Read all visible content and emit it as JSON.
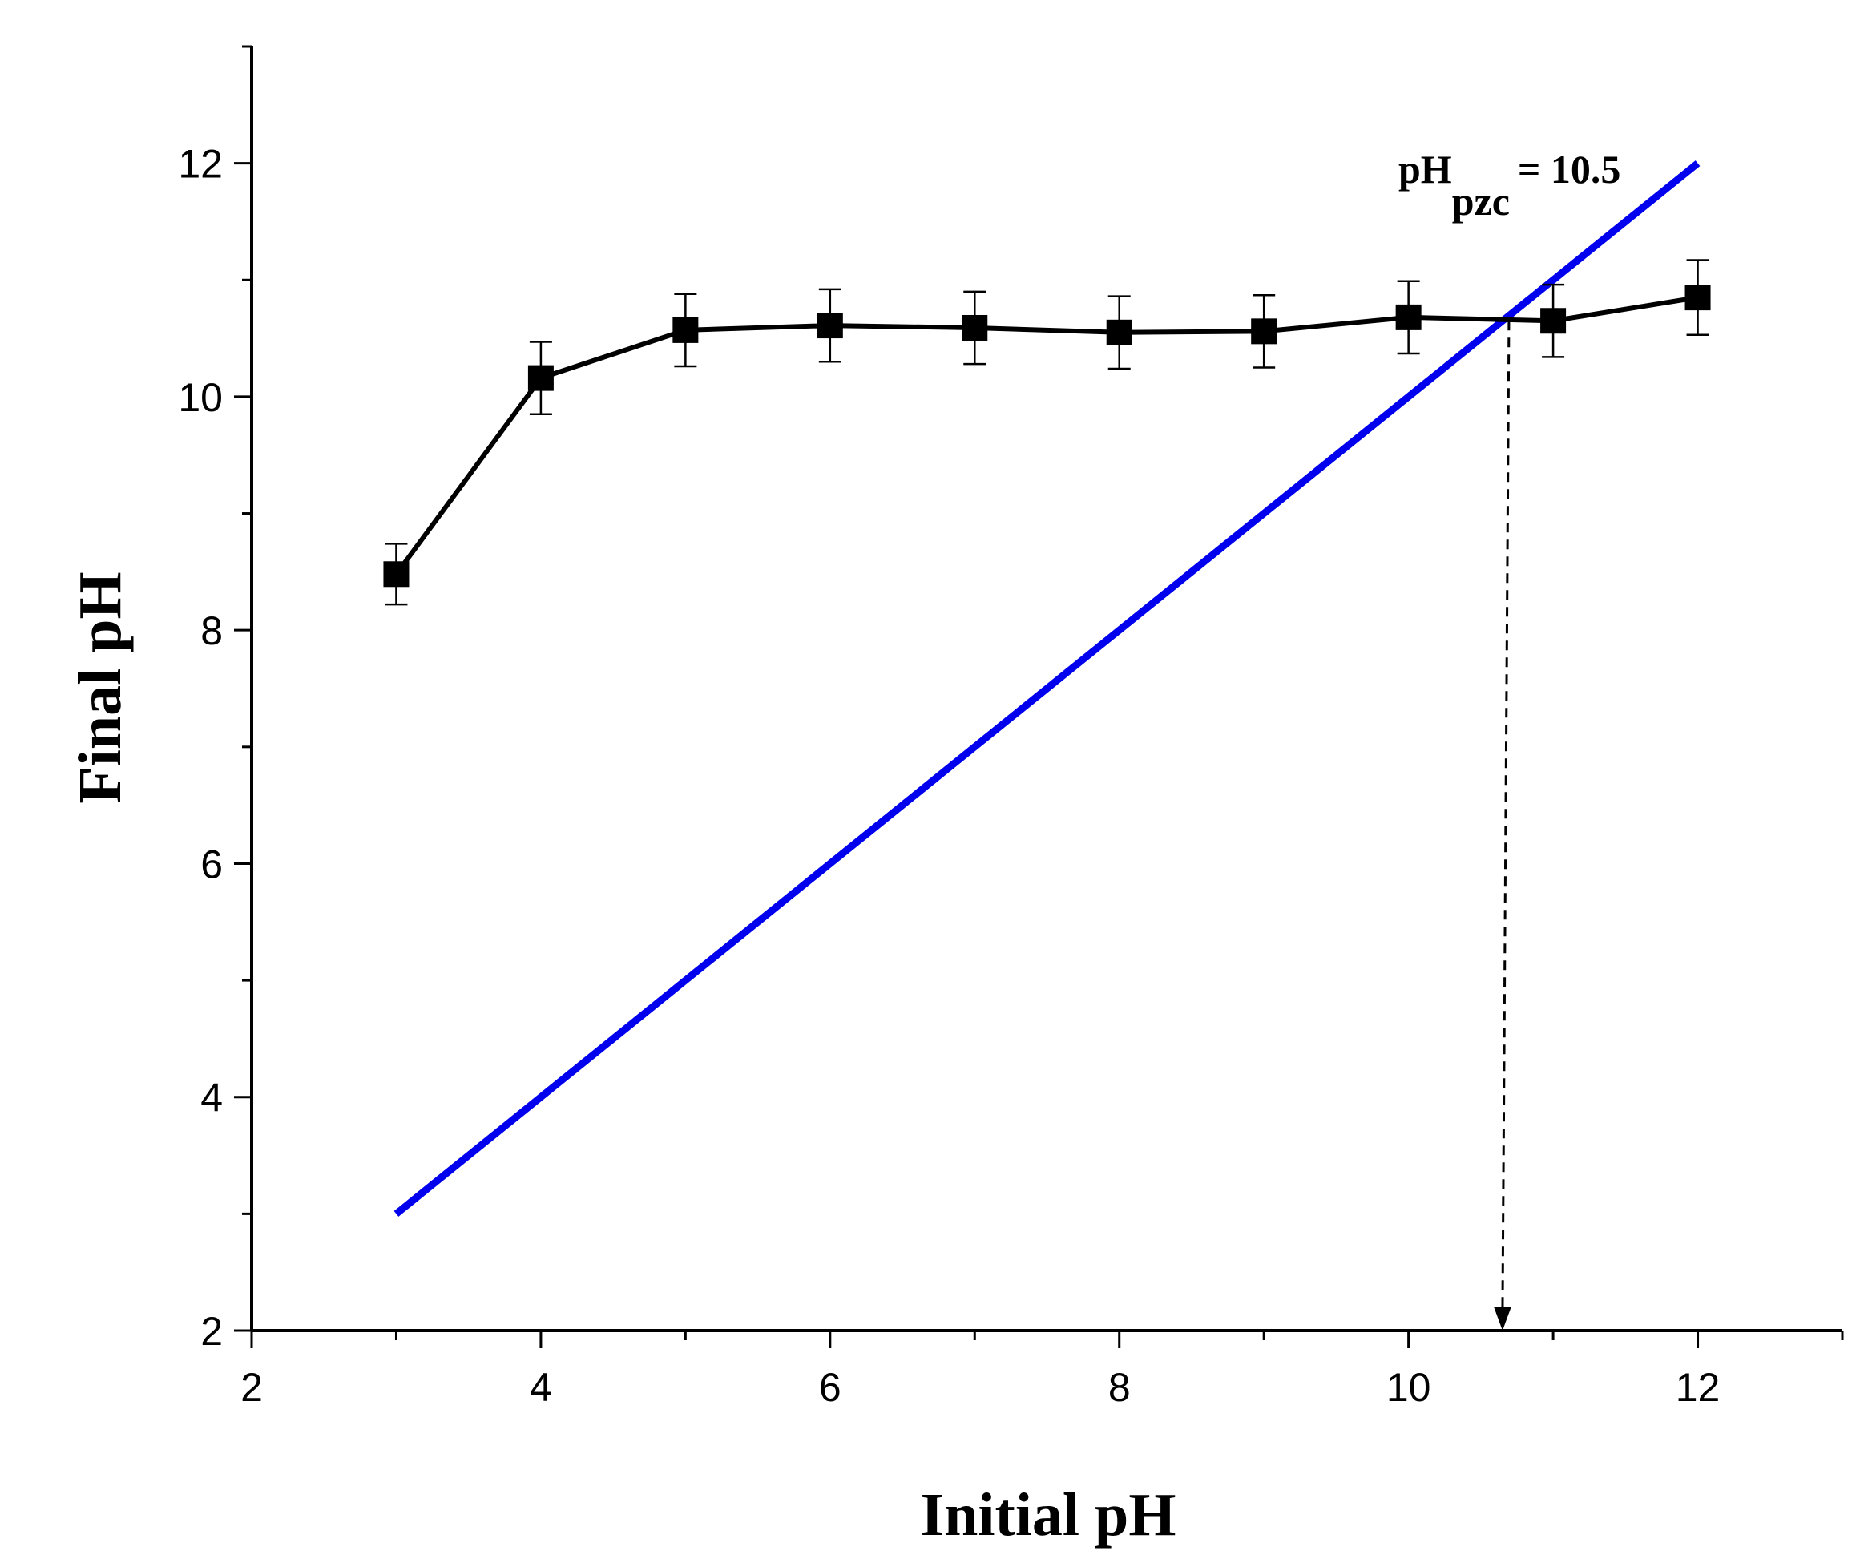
{
  "chart_data": {
    "type": "line",
    "xlabel": "Initial pH",
    "ylabel": "Final pH",
    "xlim": [
      2,
      13
    ],
    "ylim": [
      2,
      13
    ],
    "x_ticks": [
      2,
      4,
      6,
      8,
      10,
      12
    ],
    "y_ticks": [
      2,
      4,
      6,
      8,
      10,
      12
    ],
    "grid": false,
    "legend": "none",
    "series": [
      {
        "color": "#000000",
        "marker": "square",
        "x": [
          3,
          4,
          5,
          6,
          7,
          8,
          9,
          10,
          11,
          12
        ],
        "y": [
          8.48,
          10.16,
          10.57,
          10.61,
          10.59,
          10.55,
          10.56,
          10.68,
          10.65,
          10.85
        ],
        "error": [
          0.26,
          0.31,
          0.31,
          0.31,
          0.31,
          0.31,
          0.31,
          0.31,
          0.31,
          0.32
        ]
      },
      {
        "color": "#0000ee",
        "x": [
          3,
          12
        ],
        "y": [
          3,
          12
        ]
      }
    ],
    "annotation": {
      "text_main": "pH",
      "text_sub": "pzc",
      "text_value": "= 10.5",
      "arrow": {
        "x": 10.65,
        "y_from": 10.65,
        "y_to": 2
      }
    }
  }
}
